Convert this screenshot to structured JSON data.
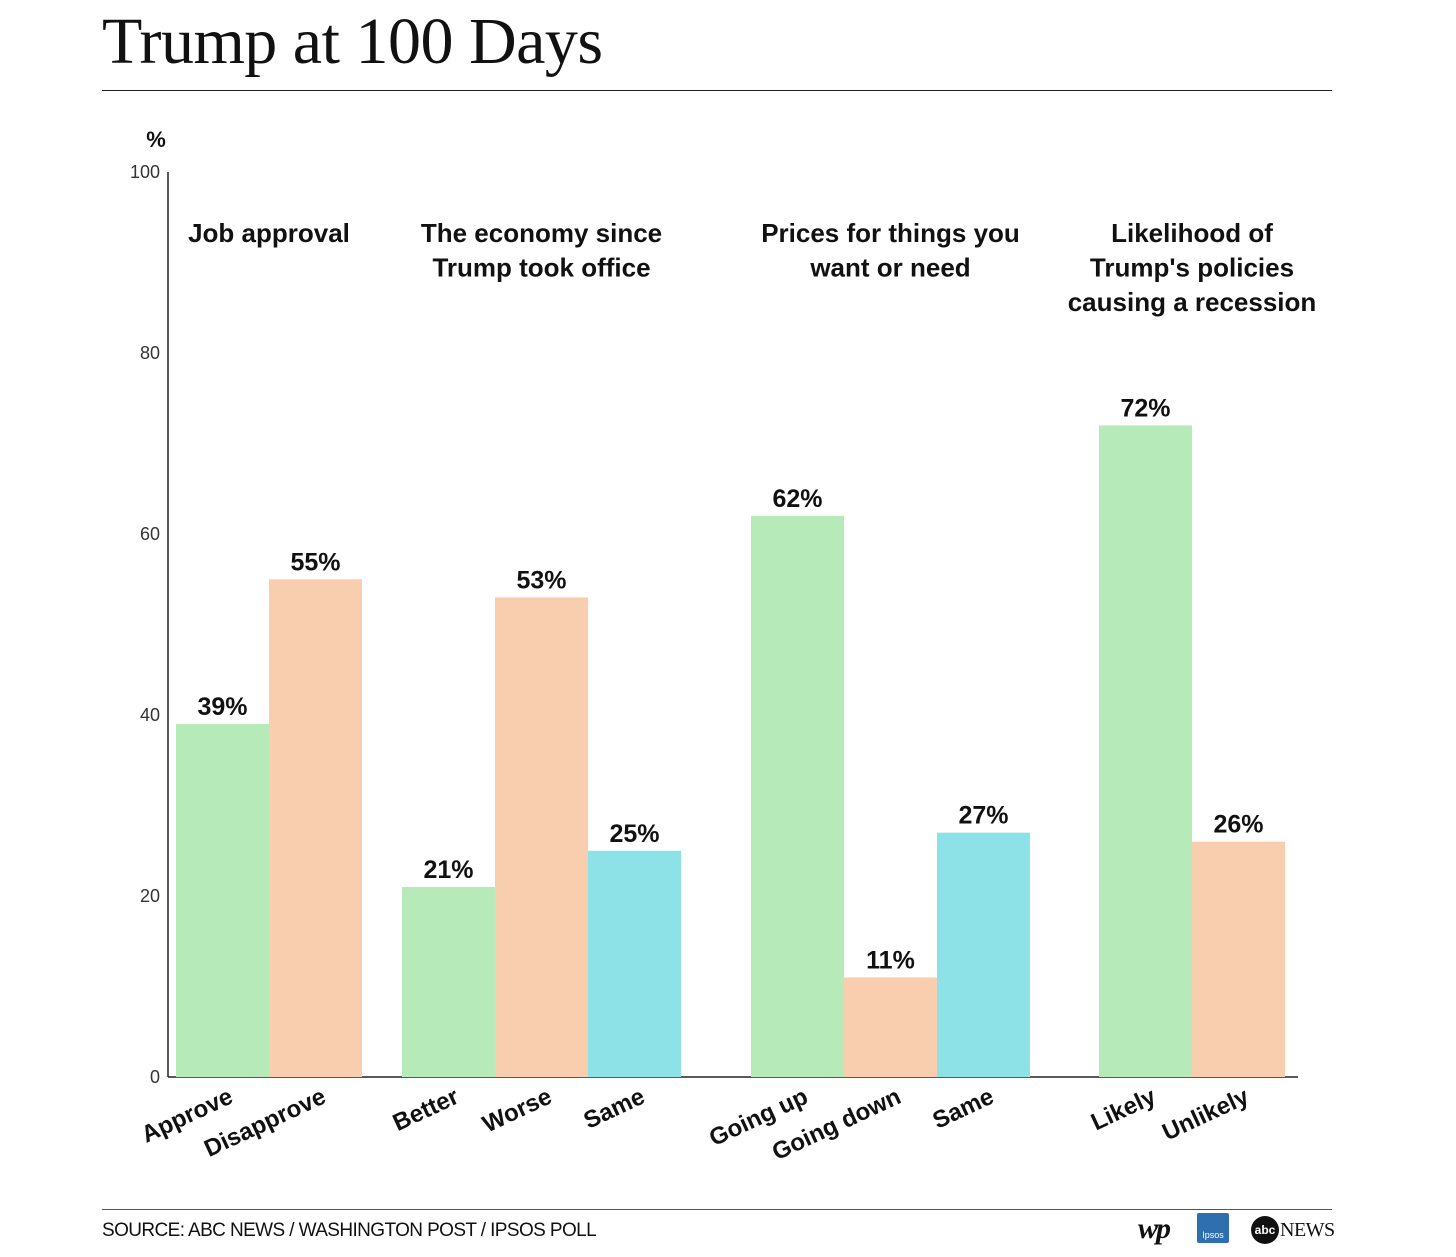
{
  "header": {
    "title": "Trump at 100 Days"
  },
  "footer": {
    "source": "SOURCE: ABC NEWS / WASHINGTON POST / IPSOS POLL",
    "logos": {
      "wp": "wp",
      "ipsos": "Ipsos",
      "abc": "abc",
      "news": "NEWS"
    }
  },
  "colors": {
    "green": "#b6ebb9",
    "orange": "#f9ceae",
    "cyan": "#8de2e7"
  },
  "chart_data": {
    "type": "bar",
    "ylabel": "%",
    "ylim": [
      0,
      100
    ],
    "yticks": [
      0,
      20,
      40,
      60,
      80,
      100
    ],
    "grid": false,
    "groups": [
      {
        "title": "Job approval",
        "bars": [
          {
            "category": "Approve",
            "value": 39,
            "label": "39%",
            "color": "#b6ebb9"
          },
          {
            "category": "Disapprove",
            "value": 55,
            "label": "55%",
            "color": "#f9ceae"
          }
        ]
      },
      {
        "title": "The economy since Trump took office",
        "bars": [
          {
            "category": "Better",
            "value": 21,
            "label": "21%",
            "color": "#b6ebb9"
          },
          {
            "category": "Worse",
            "value": 53,
            "label": "53%",
            "color": "#f9ceae"
          },
          {
            "category": "Same",
            "value": 25,
            "label": "25%",
            "color": "#8de2e7"
          }
        ]
      },
      {
        "title": "Prices for things you want or need",
        "bars": [
          {
            "category": "Going up",
            "value": 62,
            "label": "62%",
            "color": "#b6ebb9"
          },
          {
            "category": "Going down",
            "value": 11,
            "label": "11%",
            "color": "#f9ceae"
          },
          {
            "category": "Same",
            "value": 27,
            "label": "27%",
            "color": "#8de2e7"
          }
        ]
      },
      {
        "title": "Likelihood of Trump's policies causing a recession",
        "bars": [
          {
            "category": "Likely",
            "value": 72,
            "label": "72%",
            "color": "#b6ebb9"
          },
          {
            "category": "Unlikely",
            "value": 26,
            "label": "26%",
            "color": "#f9ceae"
          }
        ]
      }
    ]
  }
}
